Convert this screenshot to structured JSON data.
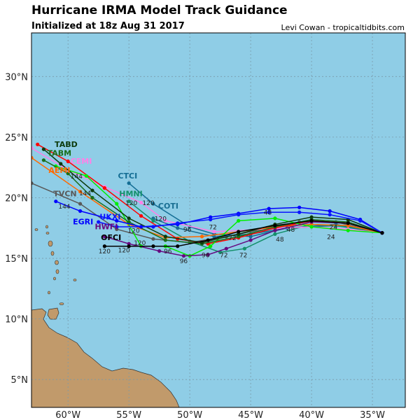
{
  "header": {
    "title": "Hurricane IRMA Model Track Guidance",
    "subtitle": "Initialized at 18z Aug 31 2017",
    "credit": "Levi Cowan - tropicaltidbits.com"
  },
  "map": {
    "lon_range": [
      -63.0,
      -32.3
    ],
    "lat_range": [
      2.7,
      33.6
    ],
    "ocean_color": "#8fcde6",
    "land_color": "#c19a6b",
    "lon_ticks": [
      {
        "v": -60,
        "label": "60°W"
      },
      {
        "v": -55,
        "label": "55°W"
      },
      {
        "v": -50,
        "label": "50°W"
      },
      {
        "v": -45,
        "label": "45°W"
      },
      {
        "v": -40,
        "label": "40°W"
      },
      {
        "v": -35,
        "label": "35°W"
      }
    ],
    "lat_ticks": [
      {
        "v": 30,
        "label": "30°N"
      },
      {
        "v": 25,
        "label": "25°N"
      },
      {
        "v": 20,
        "label": "20°N"
      },
      {
        "v": 15,
        "label": "15°N"
      },
      {
        "v": 10,
        "label": "10°N"
      },
      {
        "v": 5,
        "label": "5°N"
      }
    ],
    "grid": true
  },
  "tracks": [
    {
      "name": "TVCN",
      "color": "#595959",
      "label_at": [
        -61.2,
        20.1
      ],
      "points": [
        [
          -34.2,
          17.1
        ],
        [
          -38,
          18.0
        ],
        [
          -41,
          18.0
        ],
        [
          -44,
          17.4
        ],
        [
          -47,
          16.8
        ],
        [
          -50,
          16.3
        ],
        [
          -53,
          16.6
        ],
        [
          -56,
          17.4
        ],
        [
          -59,
          19.5
        ],
        [
          -63,
          21.2
        ]
      ]
    },
    {
      "name": "CTCI",
      "color": "#136d94",
      "label_at": [
        -55.9,
        21.6
      ],
      "points": [
        [
          -34.2,
          17.1
        ],
        [
          -38,
          17.8
        ],
        [
          -42,
          17.5
        ],
        [
          -45,
          16.8
        ],
        [
          -48,
          17.0
        ],
        [
          -50,
          17.6
        ],
        [
          -53,
          19.5
        ],
        [
          -55,
          21.2
        ]
      ]
    },
    {
      "name": "COTI",
      "color": "#1a6f93",
      "label_at": [
        -52.6,
        19.1
      ],
      "points": [
        [
          -34.2,
          17.1
        ],
        [
          -38,
          17.7
        ],
        [
          -42,
          17.5
        ],
        [
          -45,
          17.0
        ],
        [
          -48,
          16.8
        ],
        [
          -51,
          17.5
        ],
        [
          -53,
          18.3
        ]
      ]
    },
    {
      "name": "HMNI",
      "color": "#14906a",
      "label_at": [
        -55.8,
        20.1
      ],
      "points": [
        [
          -34.2,
          17.1
        ],
        [
          -37,
          17.6
        ],
        [
          -40,
          17.8
        ],
        [
          -43,
          17.0
        ],
        [
          -45.5,
          15.8
        ],
        [
          -47.5,
          15.5
        ],
        [
          -50,
          16.4
        ],
        [
          -53,
          18.1
        ],
        [
          -55,
          19.7
        ]
      ]
    },
    {
      "name": "CEMI",
      "color": "#ff80e8",
      "label_at": [
        -59.8,
        22.8
      ],
      "points": [
        [
          -34.2,
          17.1
        ],
        [
          -37,
          17.4
        ],
        [
          -40,
          17.6
        ],
        [
          -44,
          17.4
        ],
        [
          -48,
          17.2
        ],
        [
          -52,
          18.1
        ],
        [
          -54,
          19.6
        ],
        [
          -57,
          20.9
        ],
        [
          -60,
          22.3
        ],
        [
          -63,
          24.1
        ]
      ]
    },
    {
      "name": "AEMI",
      "color": "#ff6a00",
      "label_at": [
        -61.6,
        22.4
      ],
      "points": [
        [
          -34.2,
          17.1
        ],
        [
          -37,
          17.7
        ],
        [
          -40,
          17.8
        ],
        [
          -43,
          17.6
        ],
        [
          -46,
          17.2
        ],
        [
          -49,
          16.8
        ],
        [
          -52,
          16.7
        ],
        [
          -55,
          17.8
        ],
        [
          -59,
          20.5
        ],
        [
          -63,
          23.3
        ]
      ]
    },
    {
      "name": "",
      "color": "#ff0000",
      "label_at": null,
      "points": [
        [
          -34.2,
          17.1
        ],
        [
          -37,
          17.9
        ],
        [
          -40,
          18.1
        ],
        [
          -43,
          17.5
        ],
        [
          -46,
          16.7
        ],
        [
          -48.5,
          16.2
        ],
        [
          -51,
          16.6
        ],
        [
          -54,
          18.5
        ],
        [
          -57,
          20.8
        ],
        [
          -60,
          23.0
        ],
        [
          -62.5,
          24.4
        ]
      ]
    },
    {
      "name": "",
      "color": "#00ee00",
      "label_at": null,
      "points": [
        [
          -34.2,
          17.1
        ],
        [
          -37,
          17.3
        ],
        [
          -40,
          17.6
        ],
        [
          -43,
          18.3
        ],
        [
          -46,
          18.1
        ],
        [
          -48.3,
          16.0
        ],
        [
          -50,
          15.2
        ],
        [
          -52,
          16.0
        ],
        [
          -54,
          16.0
        ],
        [
          -56,
          19.5
        ],
        [
          -58.5,
          21.8
        ],
        [
          -61,
          22.6
        ]
      ]
    },
    {
      "name": "TABM",
      "color": "#1a6e1a",
      "label_at": [
        -61.7,
        22.9
      ],
      "points": [
        [
          -34.2,
          17.1
        ],
        [
          -37,
          18.0
        ],
        [
          -40,
          18.2
        ],
        [
          -43,
          17.6
        ],
        [
          -46,
          16.8
        ],
        [
          -49,
          16.2
        ],
        [
          -52,
          16.5
        ],
        [
          -55,
          18.0
        ],
        [
          -58,
          20.0
        ],
        [
          -60,
          22.0
        ],
        [
          -62,
          23.1
        ]
      ]
    },
    {
      "name": "TABD",
      "color": "#0d3b0d",
      "label_at": [
        -61.1,
        23.5
      ],
      "points": [
        [
          -34.2,
          17.1
        ],
        [
          -37,
          18.2
        ],
        [
          -40,
          18.4
        ],
        [
          -43,
          17.8
        ],
        [
          -46,
          17.0
        ],
        [
          -49,
          16.3
        ],
        [
          -52,
          16.8
        ],
        [
          -55,
          18.3
        ],
        [
          -58,
          20.6
        ],
        [
          -60.6,
          22.8
        ],
        [
          -62,
          24.0
        ]
      ]
    },
    {
      "name": "EGRI",
      "color": "#0000ff",
      "label_at": [
        -59.6,
        17.8
      ],
      "points": [
        [
          -34.2,
          17.1
        ],
        [
          -36,
          18.2
        ],
        [
          -38.5,
          18.9
        ],
        [
          -41,
          19.2
        ],
        [
          -43.5,
          19.1
        ],
        [
          -46,
          18.7
        ],
        [
          -48.3,
          18.4
        ],
        [
          -51,
          17.8
        ],
        [
          -54,
          17.6
        ],
        [
          -56,
          18.1
        ],
        [
          -59,
          18.9
        ],
        [
          -61,
          19.7
        ]
      ]
    },
    {
      "name": "UKXI",
      "color": "#0a14ff",
      "label_at": [
        -57.4,
        18.2
      ],
      "points": [
        [
          -34.2,
          17.1
        ],
        [
          -36,
          18.1
        ],
        [
          -38.5,
          18.6
        ],
        [
          -41,
          18.8
        ],
        [
          -43.5,
          18.8
        ],
        [
          -46,
          18.6
        ],
        [
          -48.3,
          18.2
        ],
        [
          -51,
          17.9
        ],
        [
          -53,
          17.6
        ],
        [
          -56,
          17.6
        ],
        [
          -57.5,
          18.0
        ]
      ]
    },
    {
      "name": "HWFI",
      "color": "#660a80",
      "label_at": [
        -57.8,
        17.4
      ],
      "points": [
        [
          -34.2,
          17.1
        ],
        [
          -37,
          17.9
        ],
        [
          -40,
          18.0
        ],
        [
          -43,
          17.3
        ],
        [
          -45,
          16.5
        ],
        [
          -47,
          15.8
        ],
        [
          -48.5,
          15.3
        ],
        [
          -50.5,
          15.2
        ],
        [
          -52.5,
          15.6
        ],
        [
          -55,
          16.2
        ],
        [
          -57,
          16.8
        ]
      ]
    },
    {
      "name": "OFCI",
      "color": "#000000",
      "label_at": [
        -57.3,
        16.5
      ],
      "points": [
        [
          -34.2,
          17.1
        ],
        [
          -37,
          17.9
        ],
        [
          -40,
          18.1
        ],
        [
          -43,
          17.7
        ],
        [
          -46,
          17.2
        ],
        [
          -48.5,
          16.5
        ],
        [
          -51,
          16.0
        ],
        [
          -53,
          16.0
        ],
        [
          -55,
          16.0
        ],
        [
          -57,
          16.0
        ]
      ]
    }
  ],
  "hour_labels": [
    {
      "text": "24",
      "at": [
        -38.4,
        16.6
      ]
    },
    {
      "text": "24",
      "at": [
        -38.2,
        17.4
      ]
    },
    {
      "text": "48",
      "at": [
        -43.6,
        18.6
      ]
    },
    {
      "text": "48",
      "at": [
        -42.6,
        16.4
      ]
    },
    {
      "text": "48",
      "at": [
        -41.7,
        17.2
      ]
    },
    {
      "text": "72",
      "at": [
        -48.1,
        17.4
      ]
    },
    {
      "text": "72",
      "at": [
        -46.5,
        16.5
      ]
    },
    {
      "text": "72",
      "at": [
        -47.2,
        15.1
      ]
    },
    {
      "text": "72",
      "at": [
        -45.6,
        15.1
      ]
    },
    {
      "text": "96",
      "at": [
        -50.2,
        17.2
      ]
    },
    {
      "text": "96",
      "at": [
        -50.5,
        14.6
      ]
    },
    {
      "text": "96",
      "at": [
        -48.7,
        15.1
      ]
    },
    {
      "text": "96",
      "at": [
        -51.8,
        15.4
      ]
    },
    {
      "text": "120",
      "at": [
        -52.4,
        18.1
      ]
    },
    {
      "text": "120",
      "at": [
        -53.4,
        19.4
      ]
    },
    {
      "text": "120",
      "at": [
        -54.8,
        19.4
      ]
    },
    {
      "text": "120",
      "at": [
        -57.0,
        15.4
      ]
    },
    {
      "text": "120",
      "at": [
        -55.4,
        15.5
      ]
    },
    {
      "text": "120",
      "at": [
        -54.1,
        16.1
      ]
    },
    {
      "text": "120",
      "at": [
        -54.6,
        17.1
      ]
    },
    {
      "text": "144",
      "at": [
        -60.3,
        19.1
      ]
    },
    {
      "text": "144",
      "at": [
        -58.6,
        20.2
      ]
    },
    {
      "text": "144",
      "at": [
        -59.3,
        21.7
      ]
    }
  ]
}
